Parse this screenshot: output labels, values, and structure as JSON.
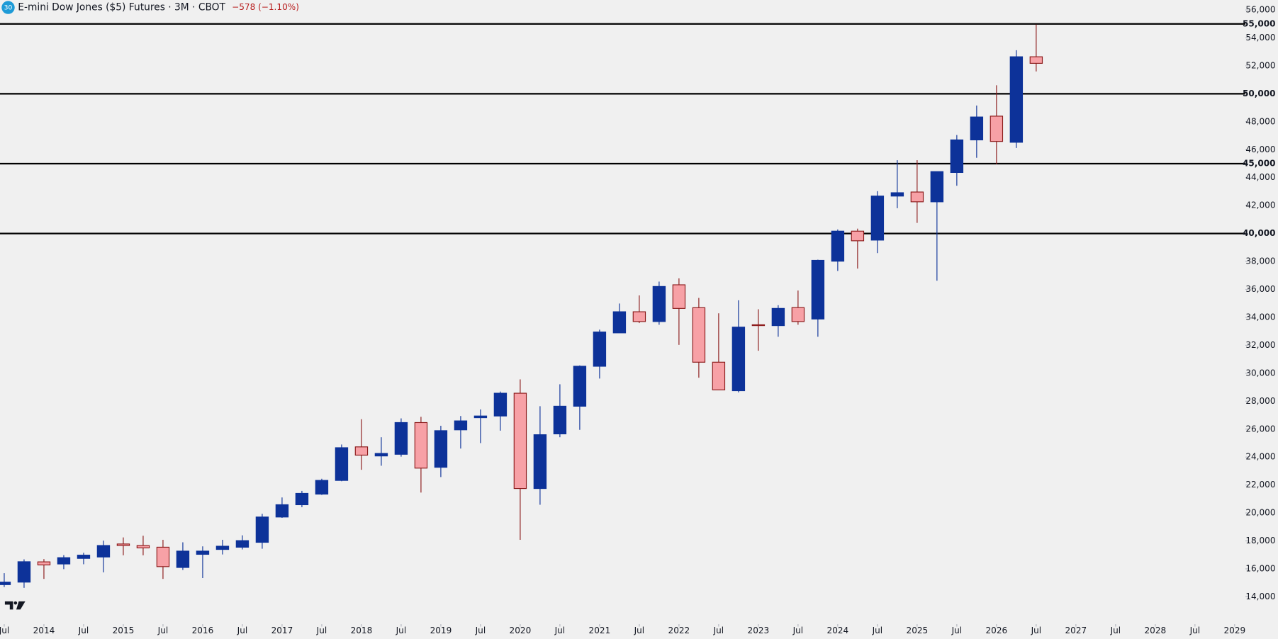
{
  "chart_data": {
    "type": "candlestick",
    "title": "E-mini Dow Jones ($5) Futures · 3M · CBOT",
    "symbol_badge": "30",
    "change_label": "−578 (−1.10%)",
    "x": [
      "2013-07",
      "2013-10",
      "2014-01",
      "2014-04",
      "2014-07",
      "2014-10",
      "2015-01",
      "2015-04",
      "2015-07",
      "2015-10",
      "2016-01",
      "2016-04",
      "2016-07",
      "2016-10",
      "2017-01",
      "2017-04",
      "2017-07",
      "2017-10",
      "2018-01",
      "2018-04",
      "2018-07",
      "2018-10",
      "2019-01",
      "2019-04",
      "2019-07",
      "2019-10",
      "2020-01",
      "2020-04",
      "2020-07",
      "2020-10",
      "2021-01",
      "2021-04",
      "2021-07",
      "2021-10",
      "2022-01",
      "2022-04",
      "2022-07",
      "2022-10",
      "2023-01",
      "2023-04",
      "2023-07",
      "2023-10",
      "2024-01",
      "2024-04",
      "2024-07",
      "2024-10",
      "2025-01",
      "2025-04",
      "2025-07",
      "2025-10",
      "2026-01",
      "2026-04",
      "2026-07"
    ],
    "open": [
      14870,
      15050,
      16500,
      16350,
      16750,
      16850,
      17780,
      17670,
      17550,
      16100,
      17040,
      17390,
      17550,
      17900,
      19710,
      20590,
      21350,
      22330,
      24730,
      24080,
      24200,
      26470,
      23270,
      25950,
      26820,
      26940,
      28570,
      21750,
      25660,
      27640,
      30500,
      32890,
      34400,
      33700,
      36330,
      34690,
      30790,
      28750,
      33470,
      33410,
      34700,
      33880,
      38020,
      40170,
      39530,
      42680,
      42970,
      42270,
      44370,
      46700,
      48400,
      46530,
      52650
    ],
    "high": [
      15690,
      16680,
      16700,
      16980,
      17150,
      18020,
      18250,
      18370,
      18080,
      17900,
      17610,
      18080,
      18400,
      19940,
      21110,
      21580,
      22450,
      24900,
      26710,
      25420,
      26770,
      26880,
      26240,
      26940,
      27410,
      28690,
      29560,
      27640,
      29210,
      30560,
      33120,
      34990,
      35570,
      36560,
      36790,
      35390,
      34290,
      35220,
      34580,
      34870,
      35920,
      38130,
      40290,
      40350,
      43030,
      45250,
      45250,
      44430,
      47050,
      49160,
      50610,
      53120,
      54960
    ],
    "low": [
      14700,
      14640,
      15280,
      15980,
      16330,
      15750,
      16970,
      16970,
      15280,
      15920,
      15340,
      17030,
      17390,
      17440,
      19650,
      20410,
      21290,
      22270,
      23090,
      23380,
      24030,
      21460,
      22570,
      24610,
      25000,
      25890,
      18080,
      20590,
      25420,
      25950,
      29620,
      32890,
      33590,
      33470,
      32030,
      29680,
      28810,
      28630,
      31610,
      32610,
      33470,
      32610,
      37320,
      37490,
      38600,
      41810,
      40760,
      36620,
      43420,
      45420,
      44950,
      46120,
      51600
    ],
    "close": [
      15050,
      16510,
      16280,
      16800,
      16980,
      17670,
      17670,
      17500,
      16160,
      17270,
      17270,
      17620,
      18020,
      19710,
      20590,
      21400,
      22330,
      24670,
      24140,
      24260,
      26470,
      23210,
      25890,
      26590,
      26940,
      28570,
      21750,
      25600,
      27640,
      30500,
      32950,
      34400,
      33700,
      36210,
      34640,
      30790,
      28810,
      33300,
      33410,
      34640,
      33700,
      38080,
      40170,
      39480,
      42680,
      42920,
      42270,
      44430,
      46700,
      48340,
      46590,
      52650,
      52180
    ],
    "up_color": "#0d3299",
    "down_color": "#f7a1a6",
    "down_border": "#8b1a1a",
    "xlim": [
      "2013-06-12",
      "2029-02-20"
    ],
    "xticks": [
      {
        "value": "2013-07",
        "label": "Jul"
      },
      {
        "value": "2014-01",
        "label": "2014"
      },
      {
        "value": "2014-07",
        "label": "Jul"
      },
      {
        "value": "2015-01",
        "label": "2015"
      },
      {
        "value": "2015-07",
        "label": "Jul"
      },
      {
        "value": "2016-01",
        "label": "2016"
      },
      {
        "value": "2016-07",
        "label": "Jul"
      },
      {
        "value": "2017-01",
        "label": "2017"
      },
      {
        "value": "2017-07",
        "label": "Jul"
      },
      {
        "value": "2018-01",
        "label": "2018"
      },
      {
        "value": "2018-07",
        "label": "Jul"
      },
      {
        "value": "2019-01",
        "label": "2019"
      },
      {
        "value": "2019-07",
        "label": "Jul"
      },
      {
        "value": "2020-01",
        "label": "2020"
      },
      {
        "value": "2020-07",
        "label": "Jul"
      },
      {
        "value": "2021-01",
        "label": "2021"
      },
      {
        "value": "2021-07",
        "label": "Jul"
      },
      {
        "value": "2022-01",
        "label": "2022"
      },
      {
        "value": "2022-07",
        "label": "Jul"
      },
      {
        "value": "2023-01",
        "label": "2023"
      },
      {
        "value": "2023-07",
        "label": "Jul"
      },
      {
        "value": "2024-01",
        "label": "2024"
      },
      {
        "value": "2024-07",
        "label": "Jul"
      },
      {
        "value": "2025-01",
        "label": "2025"
      },
      {
        "value": "2025-07",
        "label": "Jul"
      },
      {
        "value": "2026-01",
        "label": "2026"
      },
      {
        "value": "2026-07",
        "label": "Jul"
      },
      {
        "value": "2027-01",
        "label": "2027"
      },
      {
        "value": "2027-07",
        "label": "Jul"
      },
      {
        "value": "2028-01",
        "label": "2028"
      },
      {
        "value": "2028-07",
        "label": "Jul"
      },
      {
        "value": "2029-01",
        "label": "2029"
      }
    ],
    "ylim": [
      12100,
      56700
    ],
    "yticks": [
      {
        "value": 14000,
        "label": "14,000"
      },
      {
        "value": 16000,
        "label": "16,000"
      },
      {
        "value": 18000,
        "label": "18,000"
      },
      {
        "value": 20000,
        "label": "20,000"
      },
      {
        "value": 22000,
        "label": "22,000"
      },
      {
        "value": 24000,
        "label": "24,000"
      },
      {
        "value": 26000,
        "label": "26,000"
      },
      {
        "value": 28000,
        "label": "28,000"
      },
      {
        "value": 30000,
        "label": "30,000"
      },
      {
        "value": 32000,
        "label": "32,000"
      },
      {
        "value": 34000,
        "label": "34,000"
      },
      {
        "value": 36000,
        "label": "36,000"
      },
      {
        "value": 38000,
        "label": "38,000"
      },
      {
        "value": 42000,
        "label": "42,000"
      },
      {
        "value": 44000,
        "label": "44,000"
      },
      {
        "value": 46000,
        "label": "46,000"
      },
      {
        "value": 48000,
        "label": "48,000"
      },
      {
        "value": 52000,
        "label": "52,000"
      },
      {
        "value": 54000,
        "label": "54,000"
      },
      {
        "value": 56000,
        "label": "56,000"
      }
    ],
    "levels": [
      {
        "value": 40000,
        "label": "40,000"
      },
      {
        "value": 45000,
        "label": "45,000"
      },
      {
        "value": 50000,
        "label": "50,000"
      },
      {
        "value": 55000,
        "label": "55,000"
      }
    ],
    "level_color": "#000000"
  }
}
